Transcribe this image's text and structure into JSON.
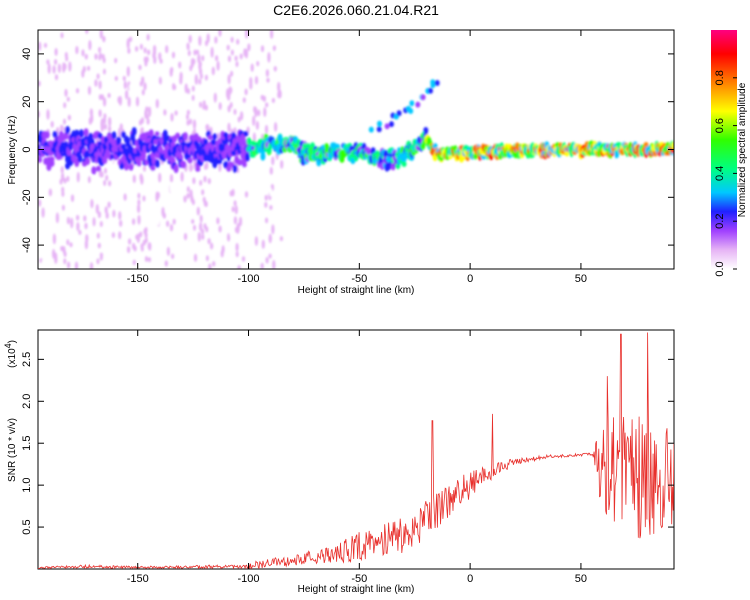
{
  "chart_data": [
    {
      "type": "heatmap",
      "title": "C2E6.2026.060.21.04.R21",
      "xlabel": "Height of straight line (km)",
      "ylabel": "Frequency (Hz)",
      "xlim": [
        -195,
        92
      ],
      "ylim": [
        -50,
        50
      ],
      "xticks": [
        -150,
        -100,
        -50,
        0,
        50
      ],
      "yticks": [
        -40,
        -20,
        0,
        20,
        40
      ],
      "colorbar": {
        "label": "Normalized spectral amplitude",
        "ticks": [
          "0.0",
          "0.2",
          "0.4",
          "0.6",
          "0.8"
        ],
        "range": [
          0,
          1
        ],
        "colors": [
          "#ffffff",
          "#e6b3f5",
          "#a040ff",
          "#2020ff",
          "#00c8ff",
          "#00ff80",
          "#30ff00",
          "#ffff00",
          "#ff8000",
          "#ff0000",
          "#ff0080"
        ]
      },
      "trace_centerline": [
        {
          "x": -195,
          "y": 0
        },
        {
          "x": -100,
          "y": 0
        },
        {
          "x": -80,
          "y": 3
        },
        {
          "x": -75,
          "y": -2
        },
        {
          "x": -50,
          "y": -1
        },
        {
          "x": -40,
          "y": -4
        },
        {
          "x": -30,
          "y": -3
        },
        {
          "x": -20,
          "y": 5
        },
        {
          "x": -15,
          "y": -2
        },
        {
          "x": 0,
          "y": -1
        },
        {
          "x": 50,
          "y": 0
        },
        {
          "x": 92,
          "y": 0
        }
      ],
      "secondary_trace": [
        {
          "x": -45,
          "y": 8
        },
        {
          "x": -35,
          "y": 13
        },
        {
          "x": -28,
          "y": 17
        },
        {
          "x": -20,
          "y": 25
        },
        {
          "x": -15,
          "y": 31
        }
      ]
    },
    {
      "type": "line",
      "xlabel": "Height of straight line (km)",
      "ylabel": "SNR (10 * v/v)",
      "yscale_label": "(x10",
      "yscale_exponent": "4",
      "xlim": [
        -195,
        92
      ],
      "ylim": [
        0,
        28500
      ],
      "xticks": [
        -150,
        -100,
        -50,
        0,
        50
      ],
      "yticks": [
        0.5,
        1.0,
        1.5,
        2.0,
        2.5
      ],
      "ytick_labels": [
        "0.5",
        "1.0",
        "1.5",
        "2.0",
        "2.5"
      ],
      "series": [
        {
          "name": "SNR",
          "color": "#e8302c",
          "envelope": [
            {
              "x": -195,
              "base": 150,
              "amp": 200
            },
            {
              "x": -175,
              "base": 300,
              "amp": 400
            },
            {
              "x": -150,
              "base": 200,
              "amp": 250
            },
            {
              "x": -100,
              "base": 300,
              "amp": 500
            },
            {
              "x": -95,
              "base": 500,
              "amp": 1200
            },
            {
              "x": -80,
              "base": 1000,
              "amp": 1200
            },
            {
              "x": -60,
              "base": 2000,
              "amp": 2500
            },
            {
              "x": -45,
              "base": 3000,
              "amp": 4000
            },
            {
              "x": -30,
              "base": 4000,
              "amp": 5000
            },
            {
              "x": -20,
              "base": 6000,
              "amp": 5000
            },
            {
              "x": -10,
              "base": 8000,
              "amp": 4000
            },
            {
              "x": 0,
              "base": 10000,
              "amp": 3500
            },
            {
              "x": 10,
              "base": 11500,
              "amp": 2000
            },
            {
              "x": 20,
              "base": 12800,
              "amp": 800
            },
            {
              "x": 35,
              "base": 13400,
              "amp": 400
            },
            {
              "x": 55,
              "base": 13700,
              "amp": 300
            },
            {
              "x": 60,
              "base": 12000,
              "amp": 12000
            },
            {
              "x": 75,
              "base": 11000,
              "amp": 15000
            },
            {
              "x": 92,
              "base": 10000,
              "amp": 13000
            }
          ],
          "peaks": [
            {
              "x": -17,
              "y": 17700
            },
            {
              "x": 10,
              "y": 18500
            },
            {
              "x": 68,
              "y": 28000
            },
            {
              "x": 80,
              "y": 28200
            },
            {
              "x": 62,
              "y": 23000
            }
          ]
        }
      ]
    }
  ]
}
